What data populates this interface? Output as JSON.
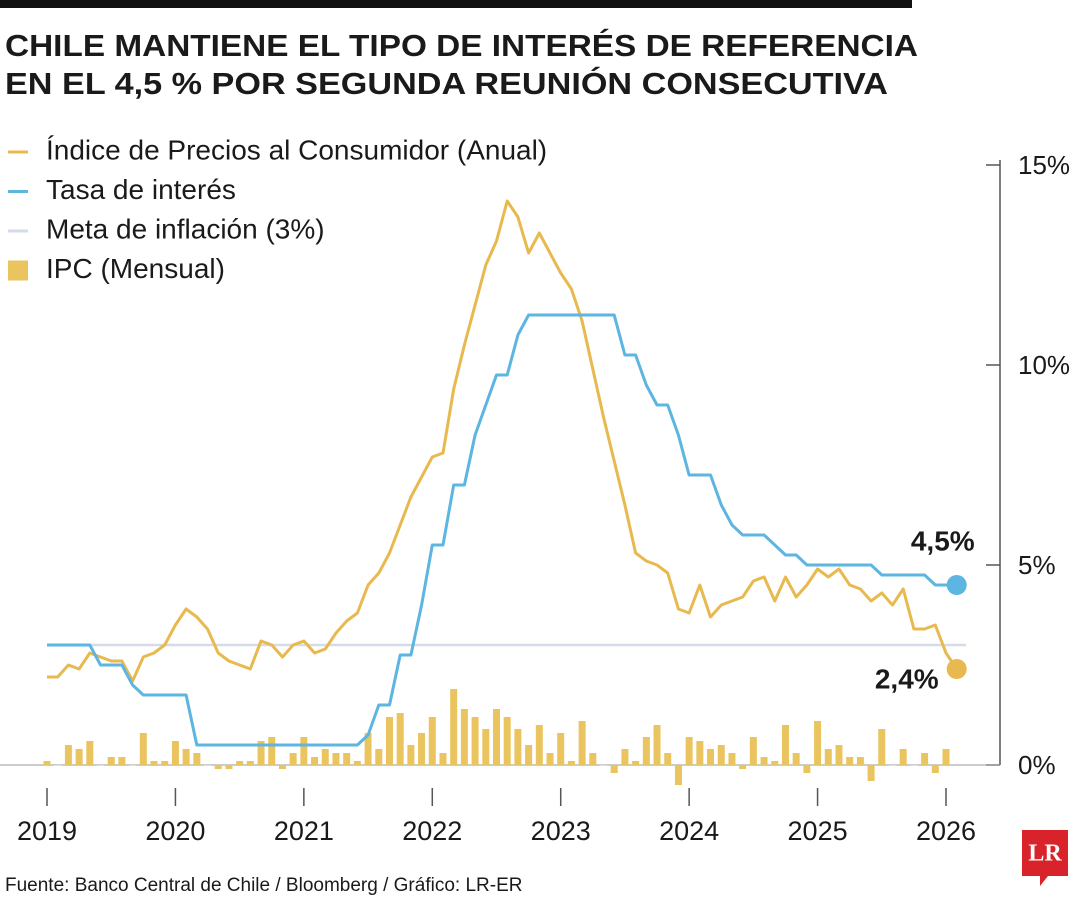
{
  "chart_data": {
    "type": "combo",
    "title": [
      "CHILE MANTIENE EL TIPO DE INTERÉS DE REFERENCIA",
      "EN EL 4,5 % POR SEGUNDA REUNIÓN CONSECUTIVA"
    ],
    "source": "Fuente: Banco Central de Chile / Bloomberg / Gráfico: LR-ER",
    "logo": "LR",
    "categories": [
      "2019",
      null,
      null,
      null,
      null,
      null,
      null,
      null,
      null,
      null,
      null,
      null,
      "2020",
      null,
      null,
      null,
      null,
      null,
      null,
      null,
      null,
      null,
      null,
      null,
      "2021",
      null,
      null,
      null,
      null,
      null,
      null,
      null,
      null,
      null,
      null,
      null,
      "2022",
      null,
      null,
      null,
      null,
      null,
      null,
      null,
      null,
      null,
      null,
      null,
      "2023",
      null,
      null,
      null,
      null,
      null,
      null,
      null,
      null,
      null,
      null,
      null,
      "2024",
      null,
      null,
      null,
      null,
      null,
      null,
      null,
      null,
      null,
      null,
      null,
      "2025",
      null,
      null,
      null,
      null,
      null,
      null,
      null,
      null,
      null,
      null,
      null,
      "2026",
      null
    ],
    "series": [
      {
        "name": "Índice de Precios al Consumidor (Anual)",
        "type": "line",
        "color": "#e8b94f",
        "values": [
          2.2,
          2.2,
          2.5,
          2.4,
          2.8,
          2.7,
          2.6,
          2.6,
          2.1,
          2.7,
          2.8,
          3.0,
          3.5,
          3.9,
          3.7,
          3.4,
          2.8,
          2.6,
          2.5,
          2.4,
          3.1,
          3.0,
          2.7,
          3.0,
          3.1,
          2.8,
          2.9,
          3.3,
          3.6,
          3.8,
          4.5,
          4.8,
          5.3,
          6.0,
          6.7,
          7.2,
          7.7,
          7.8,
          9.4,
          10.5,
          11.5,
          12.5,
          13.1,
          14.1,
          13.7,
          12.8,
          13.3,
          12.8,
          12.3,
          11.9,
          11.1,
          9.9,
          8.7,
          7.6,
          6.5,
          5.3,
          5.1,
          5.0,
          4.8,
          3.9,
          3.8,
          4.5,
          3.7,
          4.0,
          4.1,
          4.2,
          4.6,
          4.7,
          4.1,
          4.7,
          4.2,
          4.5,
          4.9,
          4.7,
          4.9,
          4.5,
          4.4,
          4.1,
          4.3,
          4.0,
          4.4,
          3.4,
          3.4,
          3.5,
          2.8,
          2.4
        ],
        "value_labels": [
          null,
          null,
          null,
          null,
          null,
          null,
          null,
          null,
          null,
          null,
          null,
          null,
          null,
          null,
          null,
          null,
          null,
          null,
          null,
          null,
          null,
          null,
          null,
          null,
          null,
          null,
          null,
          null,
          null,
          null,
          null,
          null,
          null,
          null,
          null,
          null,
          null,
          null,
          null,
          null,
          null,
          null,
          null,
          null,
          null,
          null,
          null,
          null,
          null,
          null,
          null,
          null,
          null,
          null,
          null,
          null,
          null,
          null,
          null,
          null,
          null,
          null,
          null,
          null,
          null,
          null,
          null,
          null,
          null,
          null,
          null,
          null,
          null,
          null,
          null,
          null,
          null,
          null,
          null,
          null,
          null,
          null,
          null,
          null,
          null,
          "2,4%"
        ]
      },
      {
        "name": "Tasa de interés",
        "type": "line",
        "color": "#5db5e1",
        "values": [
          3,
          3,
          3,
          3,
          3,
          2.5,
          2.5,
          2.5,
          2,
          1.75,
          1.75,
          1.75,
          1.75,
          1.75,
          0.5,
          0.5,
          0.5,
          0.5,
          0.5,
          0.5,
          0.5,
          0.5,
          0.5,
          0.5,
          0.5,
          0.5,
          0.5,
          0.5,
          0.5,
          0.5,
          0.75,
          1.5,
          1.5,
          2.75,
          2.75,
          4,
          5.5,
          5.5,
          7,
          7,
          8.25,
          9,
          9.75,
          9.75,
          10.75,
          11.25,
          11.25,
          11.25,
          11.25,
          11.25,
          11.25,
          11.25,
          11.25,
          11.25,
          10.25,
          10.25,
          9.5,
          9,
          9,
          8.25,
          7.25,
          7.25,
          7.25,
          6.5,
          6,
          5.75,
          5.75,
          5.75,
          5.5,
          5.25,
          5.25,
          5,
          5,
          5,
          5,
          5,
          5,
          5,
          4.75,
          4.75,
          4.75,
          4.75,
          4.75,
          4.5,
          4.5,
          4.5
        ],
        "value_labels": [
          null,
          null,
          null,
          null,
          null,
          null,
          null,
          null,
          null,
          null,
          null,
          null,
          null,
          null,
          null,
          null,
          null,
          null,
          null,
          null,
          null,
          null,
          null,
          null,
          null,
          null,
          null,
          null,
          null,
          null,
          null,
          null,
          null,
          null,
          null,
          null,
          null,
          null,
          null,
          null,
          null,
          null,
          null,
          null,
          null,
          null,
          null,
          null,
          null,
          null,
          null,
          null,
          null,
          null,
          null,
          null,
          null,
          null,
          null,
          null,
          null,
          null,
          null,
          null,
          null,
          null,
          null,
          null,
          null,
          null,
          null,
          null,
          null,
          null,
          null,
          null,
          null,
          null,
          null,
          null,
          null,
          null,
          null,
          null,
          null,
          "4,5%"
        ]
      },
      {
        "name": "Meta de inflación (3%)",
        "type": "hline",
        "color": "#d6dbea",
        "value": 3
      },
      {
        "name": "IPC (Mensual)",
        "type": "bar",
        "color": "#eac45e",
        "values": [
          0.1,
          0,
          0.5,
          0.4,
          0.6,
          0,
          0.2,
          0.2,
          0,
          0.8,
          0.1,
          0.1,
          0.6,
          0.4,
          0.3,
          0,
          -0.1,
          -0.1,
          0.1,
          0.1,
          0.6,
          0.7,
          -0.1,
          0.3,
          0.7,
          0.2,
          0.4,
          0.3,
          0.3,
          0.1,
          0.8,
          0.4,
          1.2,
          1.3,
          0.5,
          0.8,
          1.2,
          0.3,
          1.9,
          1.4,
          1.2,
          0.9,
          1.4,
          1.2,
          0.9,
          0.5,
          1.0,
          0.3,
          0.8,
          0.1,
          1.1,
          0.3,
          0,
          -0.2,
          0.4,
          0.1,
          0.7,
          1.0,
          0.3,
          -0.5,
          0.7,
          0.6,
          0.4,
          0.5,
          0.3,
          -0.1,
          0.7,
          0.2,
          0.1,
          1.0,
          0.3,
          -0.2,
          1.1,
          0.4,
          0.5,
          0.2,
          0.2,
          -0.4,
          0.9,
          0,
          0.4,
          0,
          0.3,
          -0.2,
          0.4,
          null
        ]
      }
    ],
    "ylim": [
      -0.8,
      15
    ],
    "yticks": [
      {
        "value": 0,
        "label": "0%"
      },
      {
        "value": 5,
        "label": "5%"
      },
      {
        "value": 10,
        "label": "10%"
      },
      {
        "value": 15,
        "label": "15%"
      }
    ]
  }
}
